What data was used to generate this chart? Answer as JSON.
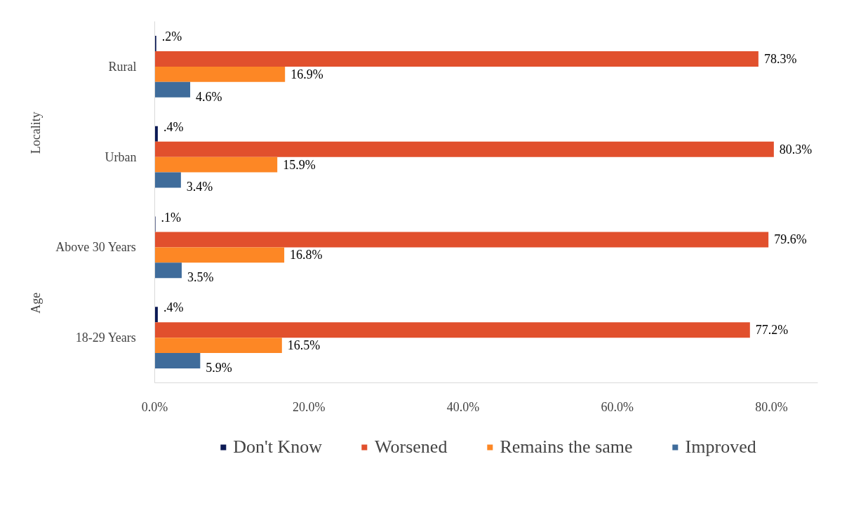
{
  "chart_data": {
    "type": "bar",
    "orientation": "horizontal",
    "categories": [
      "Rural",
      "Urban",
      "Above 30 Years",
      "18-29 Years"
    ],
    "annotations": [
      "Locality",
      "Age"
    ],
    "series": [
      {
        "name": "Don't Know",
        "color": "#0c1a55",
        "values": [
          0.2,
          0.4,
          0.1,
          0.4
        ],
        "value_labels": [
          ".2%",
          ".4%",
          ".1%",
          ".4%"
        ]
      },
      {
        "name": "Worsened",
        "color": "#e1502d",
        "values": [
          78.3,
          80.3,
          79.6,
          77.2
        ],
        "value_labels": [
          "78.3%",
          "80.3%",
          "79.6%",
          "77.2%"
        ]
      },
      {
        "name": "Remains the same",
        "color": "#fd8725",
        "values": [
          16.9,
          15.9,
          16.8,
          16.5
        ],
        "value_labels": [
          "16.9%",
          "15.9%",
          "16.8%",
          "16.5%"
        ]
      },
      {
        "name": "Improved",
        "color": "#3f6c9b",
        "values": [
          4.6,
          3.4,
          3.5,
          5.9
        ],
        "value_labels": [
          "4.6%",
          "3.4%",
          "3.5%",
          "5.9%"
        ]
      }
    ],
    "xlim": [
      0,
      86
    ],
    "xticks": [
      {
        "value": 0,
        "label": "0.0%"
      },
      {
        "value": 20,
        "label": "20.0%"
      },
      {
        "value": 40,
        "label": "40.0%"
      },
      {
        "value": 60,
        "label": "60.0%"
      },
      {
        "value": 80,
        "label": "80.0%"
      }
    ],
    "grid": false,
    "legend": "bottom"
  }
}
